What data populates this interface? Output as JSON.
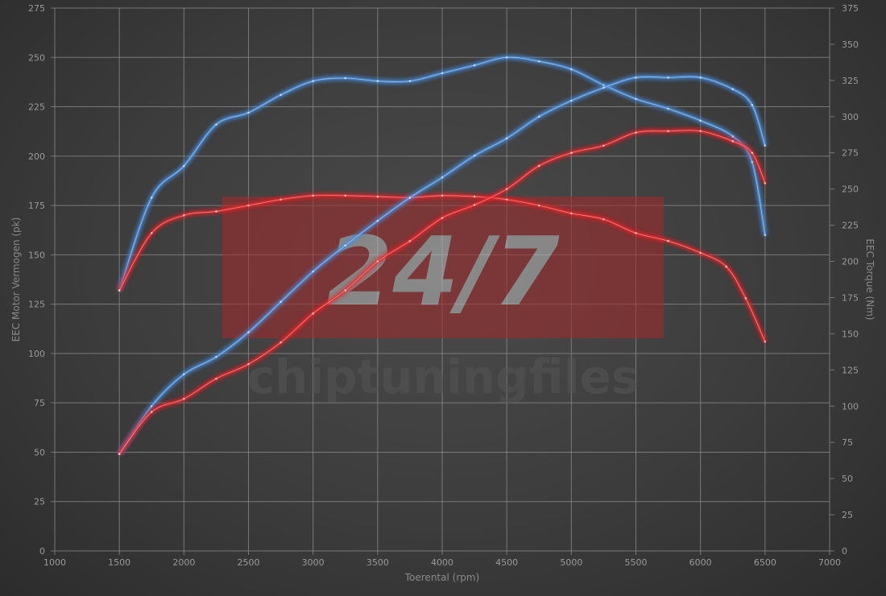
{
  "watermark": {
    "logo_main": "24/7",
    "logo_sub": "chiptuningfiles",
    "box_color": "#a52a2a"
  },
  "chart_data": {
    "type": "line",
    "xlabel": "Toerental (rpm)",
    "ylabel_left": "EEC Motor Vermogen (pk)",
    "ylabel_right": "EEC Torque (Nm)",
    "xlim": [
      1000,
      7000
    ],
    "ylim_left": [
      0,
      275
    ],
    "ylim_right": [
      0,
      375
    ],
    "grid": true,
    "x_ticks": [
      1000,
      1500,
      2000,
      2500,
      3000,
      3500,
      4000,
      4500,
      5000,
      5500,
      6000,
      6500,
      7000
    ],
    "y_left_ticks": [
      0,
      25,
      50,
      75,
      100,
      125,
      150,
      175,
      200,
      225,
      250,
      275
    ],
    "y_right_ticks": [
      0,
      25,
      50,
      75,
      100,
      125,
      150,
      175,
      200,
      225,
      250,
      275,
      300,
      325,
      350,
      375
    ],
    "series": [
      {
        "axis": "left",
        "color": "#4a90e2",
        "x": [
          1500,
          1750,
          2000,
          2250,
          2500,
          2750,
          3000,
          3250,
          3500,
          3750,
          4000,
          4250,
          4500,
          4750,
          5000,
          5250,
          5500,
          5750,
          6000,
          6250,
          6400,
          6500
        ],
        "y": [
          132,
          179,
          195,
          216,
          222,
          231,
          238,
          239.5,
          238,
          238,
          242,
          246,
          250,
          248,
          244,
          236,
          229,
          224,
          218,
          210,
          197,
          160
        ]
      },
      {
        "axis": "left",
        "color": "#e8262a",
        "x": [
          1500,
          1750,
          2000,
          2250,
          2500,
          2750,
          3000,
          3250,
          3500,
          3750,
          4000,
          4250,
          4500,
          4750,
          5000,
          5250,
          5500,
          5750,
          6000,
          6200,
          6350,
          6500
        ],
        "y": [
          132,
          161,
          170,
          172,
          175,
          178,
          180,
          180,
          179.5,
          179,
          180,
          179.5,
          178,
          175,
          171,
          168,
          161,
          157,
          151,
          144,
          128,
          106
        ]
      },
      {
        "axis": "right",
        "color": "#4a90e2",
        "x": [
          1500,
          1750,
          2000,
          2250,
          2500,
          2750,
          3000,
          3250,
          3500,
          3750,
          4000,
          4250,
          4500,
          4750,
          5000,
          5250,
          5500,
          5750,
          6000,
          6250,
          6400,
          6500
        ],
        "y": [
          67,
          100,
          122,
          134,
          151,
          172,
          193,
          211,
          228,
          244,
          258,
          273,
          285,
          300,
          311,
          320,
          327,
          327,
          327,
          319,
          308,
          280
        ]
      },
      {
        "axis": "right",
        "color": "#e8262a",
        "x": [
          1500,
          1750,
          2000,
          2250,
          2500,
          2750,
          3000,
          3250,
          3500,
          3750,
          4000,
          4250,
          4500,
          4750,
          5000,
          5250,
          5500,
          5750,
          6000,
          6250,
          6400,
          6500
        ],
        "y": [
          67,
          96,
          105,
          119,
          129,
          144,
          164,
          180,
          200,
          214,
          230,
          239,
          250,
          266,
          275,
          280,
          289,
          290,
          290,
          283,
          275,
          254
        ]
      }
    ]
  }
}
